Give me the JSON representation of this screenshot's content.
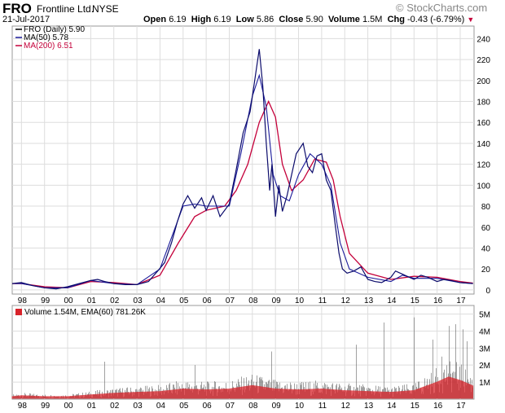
{
  "header": {
    "ticker": "FRO",
    "company": "Frontline Ltd.",
    "exchange": "NYSE",
    "brand": "© StockCharts.com",
    "date": "21-Jul-2017",
    "open_label": "Open",
    "open": "6.19",
    "high_label": "High",
    "high": "6.19",
    "low_label": "Low",
    "low": "5.86",
    "close_label": "Close",
    "close": "5.90",
    "volume_label": "Volume",
    "volume": "1.5M",
    "chg_label": "Chg",
    "chg": "-0.43 (-6.79%)"
  },
  "colors": {
    "price": "#0b0b6b",
    "ma50": "#1a1a9a",
    "ma200": "#c4003a",
    "volume": "#d8232a",
    "grid": "#dddddd"
  },
  "chart_data": [
    {
      "type": "line",
      "title": "FRO (Daily) 5.90",
      "legend": [
        "FRO (Daily) 5.90",
        "MA(50) 5.78",
        "MA(200) 6.51"
      ],
      "legend_position": "top-left",
      "x_tick_labels": [
        "98",
        "99",
        "00",
        "01",
        "02",
        "03",
        "04",
        "05",
        "06",
        "07",
        "08",
        "09",
        "10",
        "11",
        "12",
        "13",
        "14",
        "15",
        "16",
        "17"
      ],
      "y_tick_labels": [
        "0",
        "20",
        "40",
        "60",
        "80",
        "100",
        "120",
        "140",
        "160",
        "180",
        "200",
        "220",
        "240"
      ],
      "ylim": [
        -4,
        252
      ],
      "xlim": [
        1997.6,
        2017.6
      ],
      "grid": true,
      "series": [
        {
          "name": "FRO (Daily)",
          "x": [
            1997.6,
            1998,
            1998.5,
            1999,
            1999.5,
            2000,
            2000.5,
            2001,
            2001.3,
            2001.6,
            2002,
            2002.5,
            2003,
            2003.5,
            2003.9,
            2004.2,
            2004.5,
            2004.75,
            2005,
            2005.2,
            2005.5,
            2005.8,
            2006,
            2006.3,
            2006.6,
            2007,
            2007.3,
            2007.6,
            2007.9,
            2008.1,
            2008.3,
            2008.45,
            2008.6,
            2008.75,
            2008.85,
            2009,
            2009.15,
            2009.3,
            2009.5,
            2009.7,
            2009.9,
            2010.2,
            2010.4,
            2010.6,
            2010.8,
            2011,
            2011.2,
            2011.4,
            2011.6,
            2011.75,
            2011.9,
            2012.1,
            2012.4,
            2012.7,
            2013,
            2013.3,
            2013.6,
            2014,
            2014.2,
            2014.5,
            2014.8,
            2015,
            2015.3,
            2015.6,
            2016,
            2016.3,
            2016.6,
            2017,
            2017.55
          ],
          "values": [
            6,
            7,
            4,
            2,
            1,
            3,
            6,
            9,
            10,
            8,
            6,
            5,
            5,
            8,
            18,
            26,
            45,
            65,
            82,
            90,
            78,
            88,
            76,
            90,
            70,
            82,
            115,
            150,
            170,
            200,
            230,
            195,
            140,
            95,
            120,
            70,
            100,
            75,
            90,
            110,
            130,
            140,
            118,
            112,
            128,
            130,
            105,
            95,
            60,
            35,
            20,
            16,
            18,
            22,
            10,
            8,
            7,
            12,
            18,
            15,
            12,
            10,
            14,
            12,
            8,
            10,
            9,
            7,
            6
          ]
        },
        {
          "name": "MA(50)",
          "x": [
            1997.6,
            1998,
            1999,
            2000,
            2001,
            2002,
            2003,
            2004,
            2005,
            2005.5,
            2006,
            2007,
            2007.5,
            2008,
            2008.3,
            2008.6,
            2008.9,
            2009.2,
            2009.6,
            2010,
            2010.5,
            2011,
            2011.4,
            2011.8,
            2012.2,
            2013,
            2014,
            2014.5,
            2015,
            2016,
            2017,
            2017.55
          ],
          "values": [
            6,
            6,
            2,
            2,
            9,
            6,
            5,
            20,
            80,
            82,
            80,
            80,
            130,
            185,
            205,
            175,
            110,
            90,
            85,
            110,
            130,
            120,
            100,
            45,
            20,
            12,
            8,
            14,
            11,
            11,
            7,
            6
          ]
        },
        {
          "name": "MA(200)",
          "x": [
            1997.6,
            1998,
            1999,
            2000,
            2001,
            2002,
            2003,
            2004,
            2004.8,
            2005.5,
            2006,
            2006.8,
            2007.3,
            2007.8,
            2008.3,
            2008.7,
            2009,
            2009.3,
            2009.7,
            2010.2,
            2010.7,
            2011.2,
            2011.5,
            2011.8,
            2012.2,
            2013,
            2014,
            2015,
            2016,
            2017,
            2017.55
          ],
          "values": [
            6,
            6,
            3,
            2,
            8,
            7,
            5,
            14,
            45,
            70,
            76,
            80,
            95,
            120,
            160,
            180,
            165,
            120,
            95,
            105,
            125,
            122,
            105,
            70,
            35,
            16,
            10,
            13,
            12,
            8,
            6.5
          ]
        }
      ]
    },
    {
      "type": "bar",
      "title": "Volume 1.54M, EMA(60) 781.26K",
      "legend": [
        "Volume 1.54M, EMA(60) 781.26K"
      ],
      "legend_position": "top-left",
      "x_tick_labels": [
        "98",
        "99",
        "00",
        "01",
        "02",
        "03",
        "04",
        "05",
        "06",
        "07",
        "08",
        "09",
        "10",
        "11",
        "12",
        "13",
        "14",
        "15",
        "16",
        "17"
      ],
      "y_tick_labels": [
        "1M",
        "2M",
        "3M",
        "4M",
        "5M"
      ],
      "ylim": [
        0,
        5.5
      ],
      "units": "million shares",
      "ema_x": [
        1997.6,
        1998,
        1999,
        2000,
        2001,
        2002,
        2003,
        2004,
        2005,
        2006,
        2007,
        2008,
        2008.5,
        2009,
        2010,
        2011,
        2011.5,
        2012,
        2013,
        2014,
        2015,
        2016,
        2016.5,
        2017,
        2017.55
      ],
      "ema_values": [
        0.15,
        0.2,
        0.15,
        0.15,
        0.25,
        0.35,
        0.4,
        0.45,
        0.6,
        0.55,
        0.6,
        0.8,
        0.7,
        0.6,
        0.55,
        0.6,
        0.55,
        0.5,
        0.45,
        0.4,
        0.5,
        1.0,
        1.3,
        1.1,
        0.78
      ],
      "spike_x": [
        2001.6,
        2005.5,
        2008.8,
        2012.5,
        2013.7,
        2015.0,
        2015.8,
        2016.2,
        2016.5,
        2016.8,
        2017.1,
        2017.3
      ],
      "spike_values": [
        2.2,
        2.0,
        2.8,
        3.2,
        4.5,
        4.8,
        3.5,
        2.5,
        4.3,
        4.4,
        4.1,
        3.4
      ]
    }
  ]
}
